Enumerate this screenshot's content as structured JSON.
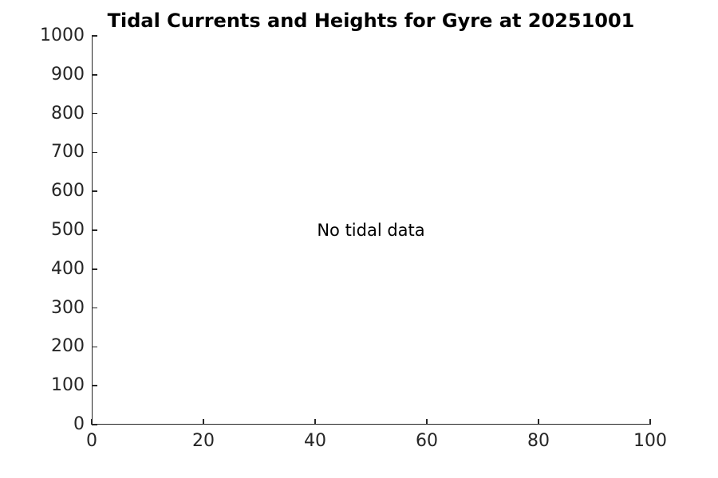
{
  "chart_data": {
    "type": "line",
    "title": "Tidal Currents and Heights for Gyre at 20251001",
    "annotation": {
      "text": "No tidal data",
      "x": 50,
      "y": 500
    },
    "xlabel": "",
    "ylabel": "",
    "xlim": [
      0,
      100
    ],
    "ylim": [
      0,
      1000
    ],
    "x_ticks": [
      0,
      20,
      40,
      60,
      80,
      100
    ],
    "y_ticks": [
      0,
      100,
      200,
      300,
      400,
      500,
      600,
      700,
      800,
      900,
      1000
    ],
    "series": [],
    "grid": false,
    "legend": null,
    "box": false,
    "tick_direction": "in",
    "axis_color": "#262626",
    "title_color": "#000000",
    "text_color": "#000000",
    "background_color": "#ffffff"
  }
}
